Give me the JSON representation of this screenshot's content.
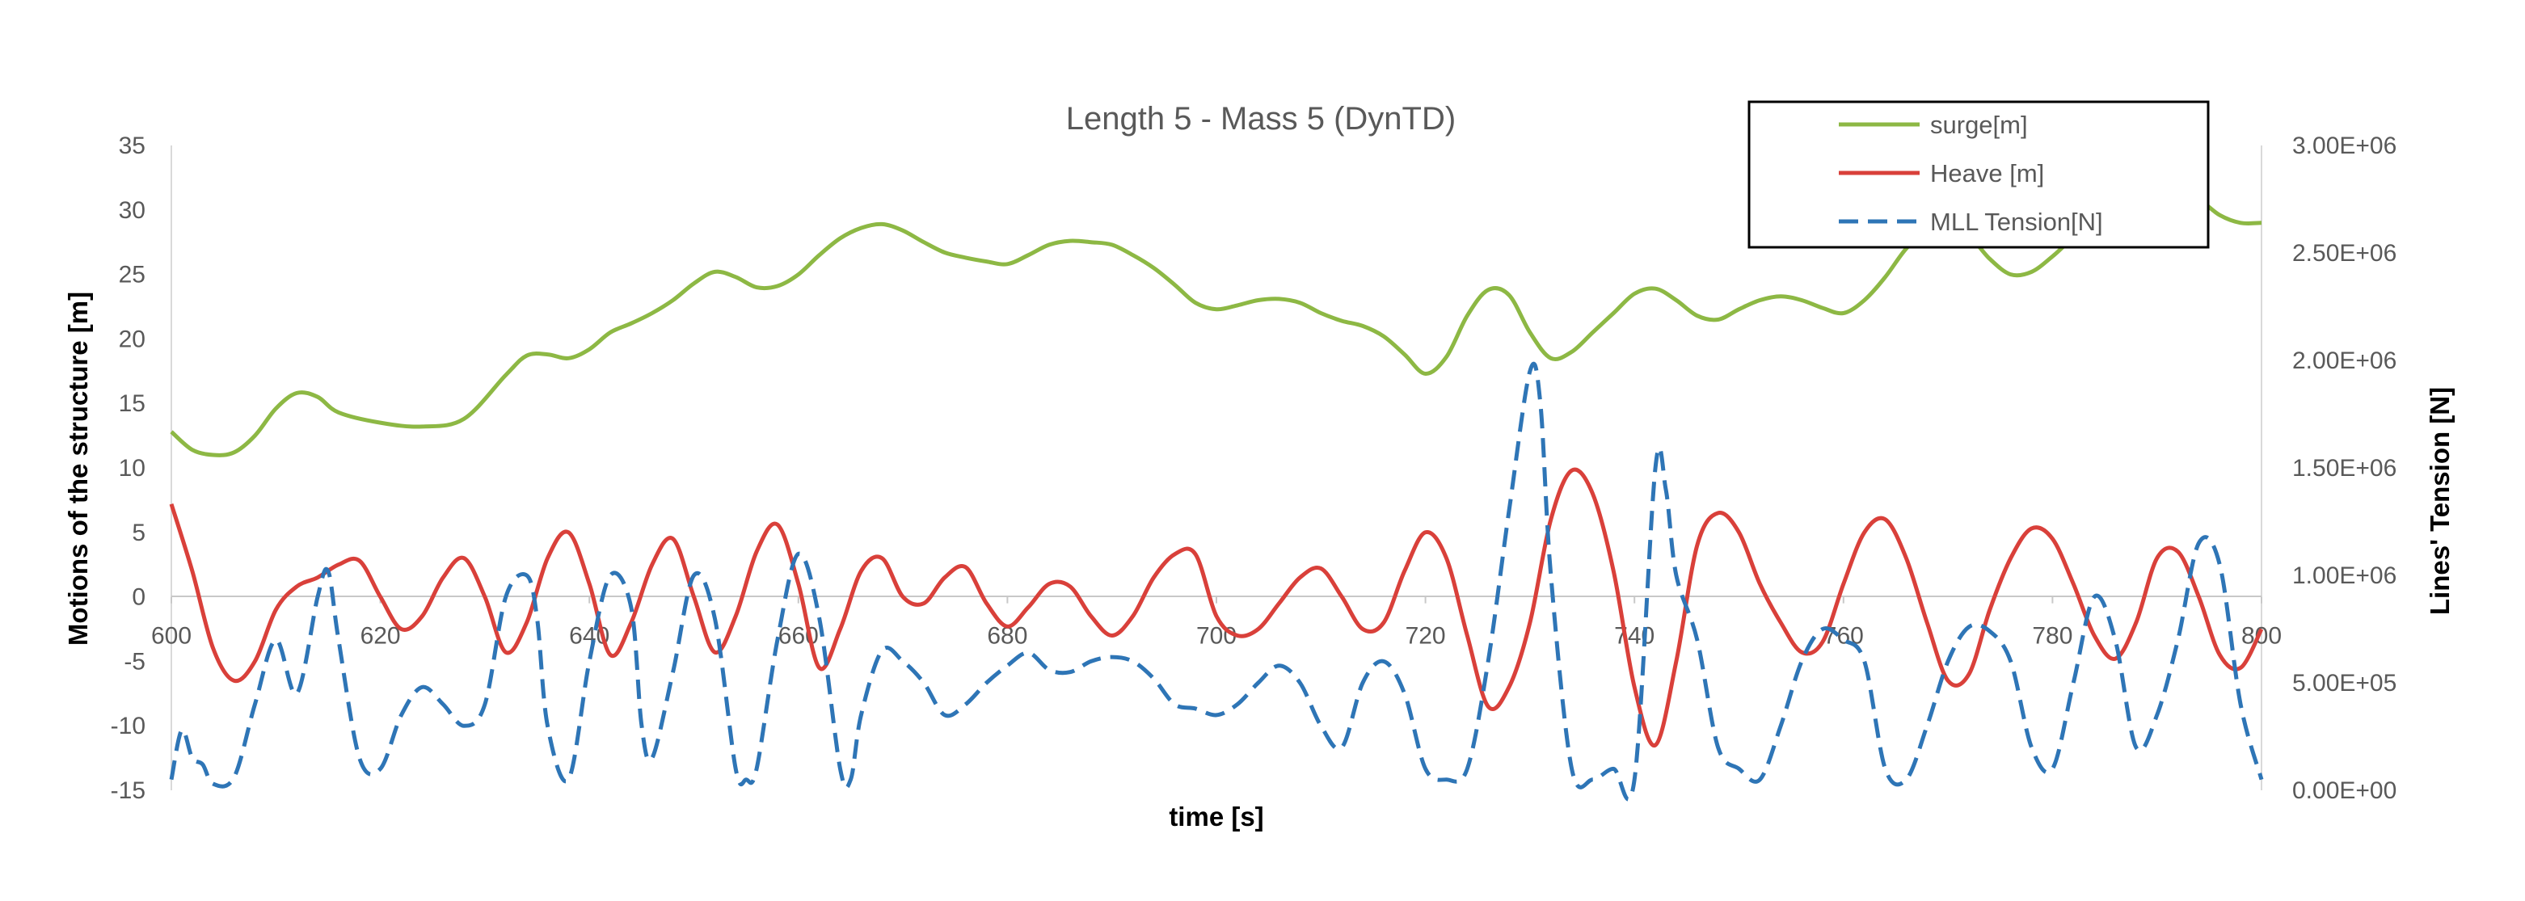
{
  "chart_data": {
    "type": "line",
    "title": "Length 5 - Mass 5 (DynTD)",
    "xlabel": "time [s]",
    "ylabel": "Motions of the structure [m]",
    "y2label": "Lines' Tension [N]",
    "xlim": [
      600,
      800
    ],
    "ylim": [
      -15,
      35
    ],
    "y2lim": [
      0,
      3000000
    ],
    "x_ticks": [
      "600",
      "620",
      "640",
      "660",
      "680",
      "700",
      "720",
      "740",
      "760",
      "780",
      "800"
    ],
    "y_ticks": [
      "35",
      "30",
      "25",
      "20",
      "15",
      "10",
      "5",
      "0",
      "-5",
      "-10",
      "-15"
    ],
    "y2_ticks": [
      "3.00E+06",
      "2.50E+06",
      "2.00E+06",
      "1.50E+06",
      "1.00E+06",
      "5.00E+05",
      "0.00E+00"
    ],
    "grid": false,
    "legend_position": "top-right",
    "series": [
      {
        "name": "surge[m]",
        "axis": "left",
        "color": "#8DB844",
        "style": "solid",
        "x": [
          600,
          602,
          604,
          606,
          608,
          610,
          612,
          614,
          616,
          620,
          624,
          628,
          632,
          634,
          636,
          638,
          640,
          642,
          644,
          646,
          648,
          650,
          652,
          654,
          656,
          658,
          660,
          662,
          664,
          666,
          668,
          670,
          672,
          674,
          676,
          678,
          680,
          682,
          684,
          686,
          688,
          690,
          692,
          694,
          696,
          698,
          700,
          702,
          704,
          706,
          708,
          710,
          712,
          714,
          716,
          718,
          720,
          722,
          724,
          726,
          728,
          730,
          732,
          734,
          736,
          738,
          740,
          742,
          744,
          746,
          748,
          750,
          752,
          754,
          756,
          758,
          760,
          762,
          764,
          766,
          768,
          770,
          772,
          774,
          776,
          778,
          780,
          782,
          784,
          786,
          788,
          790,
          792,
          794,
          796,
          798,
          800
        ],
        "values": [
          12.8,
          11.4,
          11.0,
          11.2,
          12.5,
          14.6,
          15.8,
          15.5,
          14.3,
          13.5,
          13.2,
          13.8,
          17.2,
          18.7,
          18.8,
          18.5,
          19.2,
          20.5,
          21.2,
          22.0,
          23.0,
          24.3,
          25.2,
          24.8,
          24.0,
          24.1,
          25.0,
          26.5,
          27.8,
          28.6,
          28.9,
          28.4,
          27.5,
          26.7,
          26.3,
          26.0,
          25.8,
          26.5,
          27.3,
          27.6,
          27.5,
          27.3,
          26.5,
          25.5,
          24.2,
          22.8,
          22.3,
          22.6,
          23.0,
          23.1,
          22.8,
          22.0,
          21.4,
          21.0,
          20.2,
          18.8,
          17.3,
          18.6,
          21.8,
          23.8,
          23.4,
          20.5,
          18.5,
          19.0,
          20.5,
          22.0,
          23.5,
          23.9,
          23.0,
          21.8,
          21.5,
          22.3,
          23.0,
          23.3,
          23.0,
          22.4,
          22.0,
          23.0,
          24.8,
          27.0,
          28.4,
          28.6,
          28.0,
          26.2,
          25.0,
          25.2,
          26.4,
          27.8,
          28.5,
          28.8,
          29.3,
          30.5,
          31.2,
          30.8,
          29.6,
          29.0,
          29.0
        ]
      },
      {
        "name": "Heave [m]",
        "axis": "left",
        "color": "#D9403A",
        "style": "solid",
        "x": [
          600,
          602,
          604,
          606,
          608,
          610,
          612,
          614,
          616,
          618,
          620,
          622,
          624,
          626,
          628,
          630,
          632,
          634,
          636,
          638,
          640,
          642,
          644,
          646,
          648,
          650,
          652,
          654,
          656,
          658,
          660,
          662,
          664,
          666,
          668,
          670,
          672,
          674,
          676,
          678,
          680,
          682,
          684,
          686,
          688,
          690,
          692,
          694,
          696,
          698,
          700,
          702,
          704,
          706,
          708,
          710,
          712,
          714,
          716,
          718,
          720,
          722,
          724,
          726,
          728,
          730,
          732,
          734,
          736,
          738,
          740,
          742,
          744,
          746,
          748,
          750,
          752,
          754,
          756,
          758,
          760,
          762,
          764,
          766,
          768,
          770,
          772,
          774,
          776,
          778,
          780,
          782,
          784,
          786,
          788,
          790,
          792,
          794,
          796,
          798,
          800
        ],
        "values": [
          7.2,
          2.0,
          -4.0,
          -6.5,
          -5.0,
          -1.0,
          0.8,
          1.5,
          2.5,
          2.8,
          0.0,
          -2.5,
          -1.5,
          1.5,
          3.0,
          0.0,
          -4.3,
          -2.0,
          3.0,
          5.0,
          1.0,
          -4.5,
          -2.0,
          2.5,
          4.5,
          0.0,
          -4.3,
          -1.5,
          3.5,
          5.6,
          1.0,
          -5.5,
          -2.5,
          2.0,
          3.0,
          0.0,
          -0.5,
          1.5,
          2.3,
          -0.5,
          -2.3,
          -0.8,
          1.0,
          0.8,
          -1.5,
          -3.0,
          -1.5,
          1.5,
          3.3,
          3.3,
          -1.5,
          -3.0,
          -2.5,
          -0.5,
          1.5,
          2.2,
          0.0,
          -2.5,
          -2.0,
          2.0,
          5.0,
          3.0,
          -3.0,
          -8.5,
          -7.0,
          -2.0,
          6.0,
          9.8,
          8.0,
          2.0,
          -7.0,
          -11.5,
          -5.0,
          4.0,
          6.5,
          5.0,
          1.0,
          -2.0,
          -4.3,
          -3.5,
          1.0,
          5.0,
          6.0,
          3.0,
          -2.0,
          -6.5,
          -6.0,
          -1.0,
          3.0,
          5.3,
          4.5,
          1.0,
          -3.0,
          -4.8,
          -2.0,
          3.0,
          3.5,
          0.0,
          -4.5,
          -5.5,
          -2.5
        ]
      },
      {
        "name": "MLL Tension[N]",
        "axis": "right",
        "color": "#2E75B6",
        "style": "dashed",
        "x": [
          600,
          601,
          602,
          603,
          604,
          606,
          608,
          610,
          612,
          614,
          615,
          616,
          618,
          620,
          622,
          624,
          626,
          628,
          630,
          632,
          634,
          635,
          636,
          638,
          640,
          642,
          644,
          645,
          646,
          648,
          650,
          652,
          654,
          655,
          656,
          658,
          660,
          662,
          664,
          665,
          666,
          668,
          670,
          672,
          674,
          676,
          678,
          680,
          682,
          684,
          686,
          688,
          690,
          692,
          694,
          696,
          698,
          700,
          702,
          704,
          706,
          708,
          710,
          712,
          714,
          716,
          718,
          720,
          722,
          724,
          726,
          728,
          730,
          731,
          732,
          734,
          736,
          738,
          740,
          742,
          743,
          744,
          746,
          748,
          750,
          752,
          754,
          756,
          758,
          760,
          762,
          764,
          766,
          768,
          770,
          772,
          774,
          776,
          778,
          780,
          782,
          784,
          786,
          788,
          790,
          792,
          794,
          796,
          798,
          800
        ],
        "values": [
          50000,
          280000,
          150000,
          120000,
          30000,
          60000,
          400000,
          700000,
          450000,
          900000,
          1020000,
          700000,
          150000,
          100000,
          350000,
          480000,
          400000,
          300000,
          400000,
          900000,
          1000000,
          800000,
          300000,
          50000,
          600000,
          1000000,
          850000,
          300000,
          150000,
          550000,
          1000000,
          800000,
          100000,
          50000,
          100000,
          700000,
          1100000,
          800000,
          100000,
          50000,
          350000,
          650000,
          600000,
          500000,
          350000,
          400000,
          500000,
          580000,
          640000,
          560000,
          550000,
          600000,
          620000,
          600000,
          520000,
          400000,
          380000,
          350000,
          400000,
          500000,
          580000,
          500000,
          300000,
          200000,
          500000,
          600000,
          450000,
          100000,
          50000,
          100000,
          600000,
          1300000,
          1950000,
          1800000,
          1000000,
          100000,
          50000,
          100000,
          50000,
          1500000,
          1400000,
          1000000,
          700000,
          200000,
          100000,
          50000,
          300000,
          600000,
          750000,
          700000,
          600000,
          100000,
          50000,
          300000,
          600000,
          760000,
          740000,
          600000,
          200000,
          100000,
          500000,
          900000,
          700000,
          200000,
          350000,
          700000,
          1150000,
          1050000,
          400000,
          50000
        ]
      }
    ]
  }
}
